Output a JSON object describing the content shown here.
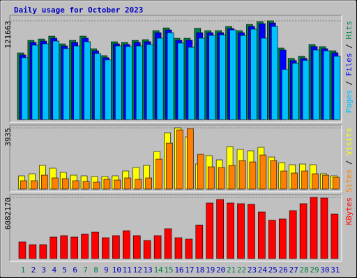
{
  "chart_data": [
    {
      "type": "bar",
      "title": "Daily usage for October 2023",
      "ylim": [
        0,
        121663
      ],
      "yticks": [
        121663
      ],
      "grid": true,
      "legend_separator": " / ",
      "series": [
        {
          "name": "Hits",
          "color": "#008040",
          "values": [
            82200,
            97600,
            99300,
            102800,
            93300,
            97600,
            102800,
            87300,
            78800,
            95900,
            95000,
            97600,
            98500,
            109600,
            113000,
            100200,
            100200,
            112500,
            109600,
            109600,
            114700,
            109600,
            117300,
            120700,
            121663,
            88200,
            75300,
            77900,
            92500,
            89900,
            84800
          ]
        },
        {
          "name": "Files",
          "color": "#0000ff",
          "values": [
            79700,
            95100,
            96800,
            100300,
            90800,
            95100,
            100300,
            84800,
            76300,
            93400,
            92500,
            95100,
            96000,
            107100,
            110500,
            97700,
            97700,
            107100,
            107100,
            107100,
            112200,
            107100,
            114800,
            118200,
            119100,
            85700,
            72800,
            75400,
            90000,
            87400,
            82300
          ]
        },
        {
          "name": "Pages",
          "color": "#00c0ff",
          "values": [
            76300,
            91700,
            93400,
            96800,
            87400,
            90800,
            96000,
            81400,
            73700,
            90800,
            90000,
            90800,
            92500,
            100300,
            107100,
            94300,
            89100,
            100300,
            103700,
            104500,
            110500,
            103700,
            111400,
            100300,
            114800,
            61700,
            69400,
            72800,
            85700,
            84800,
            78000
          ]
        }
      ]
    },
    {
      "type": "bar",
      "ylim": [
        0,
        3935
      ],
      "yticks": [
        3935
      ],
      "grid": true,
      "legend_separator": " / ",
      "series": [
        {
          "name": "Visits",
          "color": "#ffff00",
          "values": [
            849,
            983,
            1520,
            1341,
            1073,
            894,
            849,
            805,
            805,
            849,
            1162,
            1386,
            1520,
            2414,
            3621,
            3935,
            3353,
            1609,
            2146,
            1877,
            2727,
            2548,
            2459,
            2682,
            2056,
            1699,
            1565,
            1609,
            1565,
            983,
            849
          ]
        },
        {
          "name": "Sites",
          "color": "#ff8000",
          "values": [
            536,
            536,
            894,
            715,
            671,
            536,
            492,
            447,
            626,
            581,
            715,
            626,
            715,
            1922,
            2950,
            3800,
            3889,
            2235,
            1430,
            1386,
            1520,
            1833,
            1743,
            2190,
            1833,
            1162,
            1028,
            1162,
            983,
            894,
            760
          ]
        }
      ]
    },
    {
      "type": "bar",
      "ylim": [
        0,
        6082170
      ],
      "yticks": [
        6082170
      ],
      "grid": true,
      "categories": [
        "1",
        "2",
        "3",
        "4",
        "5",
        "6",
        "7",
        "8",
        "9",
        "10",
        "11",
        "12",
        "13",
        "14",
        "15",
        "16",
        "17",
        "18",
        "19",
        "20",
        "21",
        "22",
        "23",
        "24",
        "25",
        "26",
        "27",
        "28",
        "29",
        "30",
        "31"
      ],
      "category_colors": [
        "#008040",
        "#0000c0",
        "#0000c0",
        "#0000c0",
        "#0000c0",
        "#0000c0",
        "#008040",
        "#008040",
        "#0000c0",
        "#0000c0",
        "#0000c0",
        "#0000c0",
        "#0000c0",
        "#008040",
        "#008040",
        "#0000c0",
        "#0000c0",
        "#0000c0",
        "#0000c0",
        "#0000c0",
        "#008040",
        "#008040",
        "#0000c0",
        "#0000c0",
        "#0000c0",
        "#0000c0",
        "#0000c0",
        "#008040",
        "#008040",
        "#0000c0",
        "#0000c0"
      ],
      "series": [
        {
          "name": "KBytes",
          "color": "#ff0000",
          "values": [
            1658800,
            1382300,
            1382300,
            2142600,
            2280800,
            2142600,
            2419100,
            2626400,
            2073500,
            2280800,
            2764600,
            2280800,
            1797000,
            2280800,
            2972000,
            2073500,
            1935200,
            3317600,
            5529300,
            5874900,
            5529300,
            5460200,
            5391000,
            4630800,
            3801400,
            3939600,
            4769000,
            5460200,
            6082170,
            6013100,
            4423400
          ]
        }
      ]
    }
  ]
}
